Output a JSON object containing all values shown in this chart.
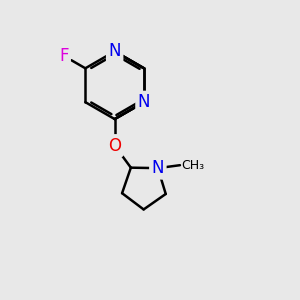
{
  "background_color": "#e8e8e8",
  "bond_color": "#000000",
  "N_color": "#0000ee",
  "O_color": "#ee0000",
  "F_color": "#dd00dd",
  "bond_width": 1.8,
  "font_size": 12,
  "figsize": [
    3.0,
    3.0
  ],
  "dpi": 100,
  "xlim": [
    0,
    10
  ],
  "ylim": [
    0,
    10
  ]
}
